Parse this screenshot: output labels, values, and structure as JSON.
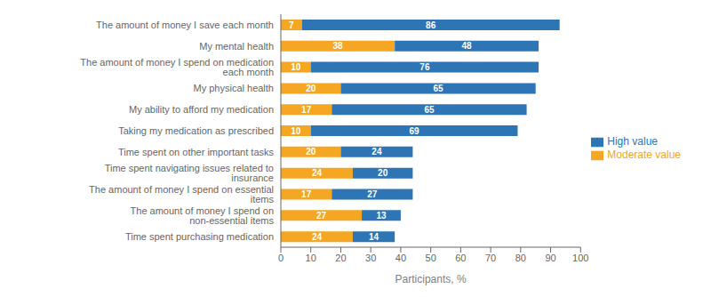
{
  "chart_data": {
    "type": "bar",
    "orientation": "horizontal",
    "stacked": true,
    "categories": [
      "Time spent purchasing medication",
      "The amount of money I spend on non-essential items",
      "The amount of money I spend on essential items",
      "Time spent navigating issues related to insurance",
      "Time spent on other important tasks",
      "Taking my medication as prescribed",
      "My ability to afford my medication",
      "My physical health",
      "The amount of money I spend on medication each month",
      "My mental health",
      "The amount of money I save each month"
    ],
    "series": [
      {
        "name": "Moderate value",
        "color": "#F5A623",
        "values": [
          24,
          27,
          17,
          24,
          20,
          10,
          17,
          20,
          10,
          38,
          7
        ]
      },
      {
        "name": "High value",
        "color": "#2E75B6",
        "values": [
          14,
          13,
          27,
          20,
          24,
          69,
          65,
          65,
          76,
          48,
          86
        ]
      }
    ],
    "xlabel": "Participants, %",
    "xlim": [
      0,
      100
    ],
    "xticks": [
      0,
      10,
      20,
      30,
      40,
      50,
      60,
      70,
      80,
      90,
      100
    ],
    "data_labels": true,
    "legend": "right"
  }
}
